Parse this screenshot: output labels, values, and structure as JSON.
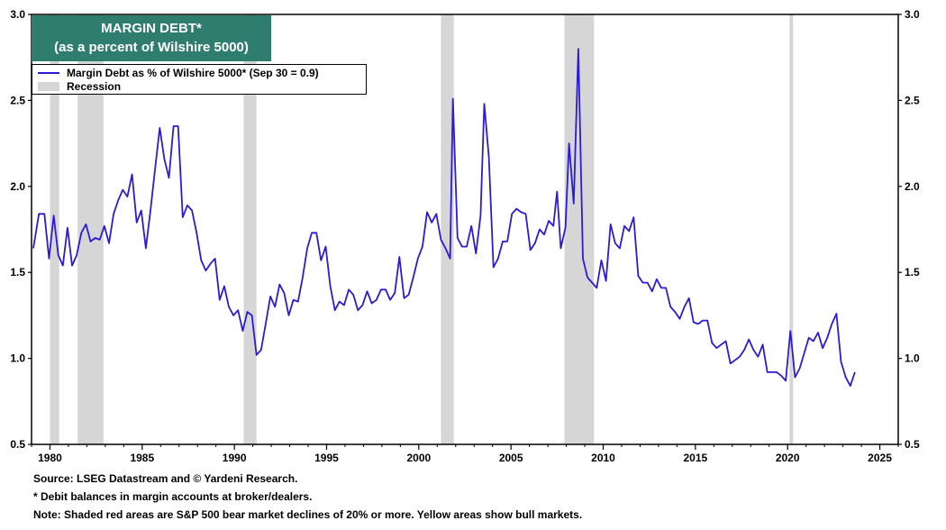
{
  "title_lines": [
    "MARGIN DEBT*",
    "(as a percent of Wilshire 5000)"
  ],
  "legend": {
    "series_label": "Margin Debt as % of Wilshire 5000*  (Sep 30 = 0.9)",
    "recession_label": "Recession"
  },
  "footnotes": [
    "Source: LSEG Datastream and © Yardeni Research.",
    "* Debit balances in margin accounts at broker/dealers.",
    "Note: Shaded red areas are S&P 500 bear market declines of 20% or more. Yellow areas show bull markets."
  ],
  "colors": {
    "line": "#2b1bd9",
    "recession": "#d6d6d6",
    "title_bg": "#2e7d6e"
  },
  "chart_data": {
    "type": "line",
    "title": "MARGIN DEBT* (as a percent of Wilshire 5000)",
    "xlim": [
      1979.0,
      2026.0
    ],
    "ylim": [
      0.5,
      3.0
    ],
    "x_ticks": [
      1980,
      1985,
      1990,
      1995,
      2000,
      2005,
      2010,
      2015,
      2020,
      2025
    ],
    "y_ticks": [
      "0.5",
      "1.0",
      "1.5",
      "2.0",
      "2.5",
      "3.0"
    ],
    "y_axis_both_sides": true,
    "grid": false,
    "legend_position": "top-left",
    "recessions": [
      [
        1980.0,
        1980.5
      ],
      [
        1981.5,
        1982.9
      ],
      [
        1990.5,
        1991.2
      ],
      [
        2001.2,
        2001.9
      ],
      [
        2007.9,
        2009.5
      ],
      [
        2020.1,
        2020.3
      ]
    ],
    "series": [
      {
        "name": "Margin Debt as % of Wilshire 5000*  (Sep 30 = 0.9)",
        "points": [
          [
            1979.1,
            1.64
          ],
          [
            1979.4,
            1.84
          ],
          [
            1979.7,
            1.84
          ],
          [
            1979.95,
            1.58
          ],
          [
            1980.2,
            1.83
          ],
          [
            1980.45,
            1.6
          ],
          [
            1980.7,
            1.54
          ],
          [
            1980.95,
            1.76
          ],
          [
            1981.2,
            1.54
          ],
          [
            1981.45,
            1.6
          ],
          [
            1981.7,
            1.73
          ],
          [
            1981.95,
            1.78
          ],
          [
            1982.2,
            1.68
          ],
          [
            1982.45,
            1.7
          ],
          [
            1982.7,
            1.69
          ],
          [
            1982.95,
            1.77
          ],
          [
            1983.2,
            1.67
          ],
          [
            1983.45,
            1.84
          ],
          [
            1983.7,
            1.92
          ],
          [
            1983.95,
            1.98
          ],
          [
            1984.2,
            1.94
          ],
          [
            1984.45,
            2.07
          ],
          [
            1984.7,
            1.79
          ],
          [
            1984.95,
            1.86
          ],
          [
            1985.2,
            1.64
          ],
          [
            1985.45,
            1.86
          ],
          [
            1985.7,
            2.1
          ],
          [
            1985.95,
            2.34
          ],
          [
            1986.2,
            2.16
          ],
          [
            1986.45,
            2.05
          ],
          [
            1986.7,
            2.35
          ],
          [
            1986.95,
            2.35
          ],
          [
            1987.2,
            1.82
          ],
          [
            1987.45,
            1.89
          ],
          [
            1987.7,
            1.86
          ],
          [
            1987.95,
            1.73
          ],
          [
            1988.2,
            1.57
          ],
          [
            1988.45,
            1.51
          ],
          [
            1988.7,
            1.55
          ],
          [
            1988.95,
            1.58
          ],
          [
            1989.2,
            1.34
          ],
          [
            1989.45,
            1.42
          ],
          [
            1989.7,
            1.3
          ],
          [
            1989.95,
            1.25
          ],
          [
            1990.2,
            1.28
          ],
          [
            1990.45,
            1.16
          ],
          [
            1990.7,
            1.27
          ],
          [
            1990.95,
            1.25
          ],
          [
            1991.2,
            1.02
          ],
          [
            1991.45,
            1.05
          ],
          [
            1991.7,
            1.2
          ],
          [
            1991.95,
            1.36
          ],
          [
            1992.2,
            1.3
          ],
          [
            1992.45,
            1.43
          ],
          [
            1992.7,
            1.38
          ],
          [
            1992.95,
            1.25
          ],
          [
            1993.2,
            1.34
          ],
          [
            1993.45,
            1.33
          ],
          [
            1993.7,
            1.47
          ],
          [
            1993.95,
            1.64
          ],
          [
            1994.2,
            1.73
          ],
          [
            1994.45,
            1.73
          ],
          [
            1994.7,
            1.57
          ],
          [
            1994.95,
            1.65
          ],
          [
            1995.2,
            1.42
          ],
          [
            1995.45,
            1.28
          ],
          [
            1995.7,
            1.33
          ],
          [
            1995.95,
            1.31
          ],
          [
            1996.2,
            1.4
          ],
          [
            1996.45,
            1.37
          ],
          [
            1996.7,
            1.28
          ],
          [
            1996.95,
            1.31
          ],
          [
            1997.2,
            1.39
          ],
          [
            1997.45,
            1.32
          ],
          [
            1997.7,
            1.34
          ],
          [
            1997.95,
            1.4
          ],
          [
            1998.2,
            1.4
          ],
          [
            1998.45,
            1.34
          ],
          [
            1998.7,
            1.38
          ],
          [
            1998.95,
            1.59
          ],
          [
            1999.2,
            1.35
          ],
          [
            1999.45,
            1.37
          ],
          [
            1999.7,
            1.47
          ],
          [
            1999.95,
            1.58
          ],
          [
            2000.2,
            1.65
          ],
          [
            2000.45,
            1.85
          ],
          [
            2000.7,
            1.79
          ],
          [
            2000.95,
            1.84
          ],
          [
            2001.2,
            1.69
          ],
          [
            2001.45,
            1.64
          ],
          [
            2001.7,
            1.58
          ],
          [
            2001.85,
            2.51
          ],
          [
            2002.1,
            1.7
          ],
          [
            2002.35,
            1.65
          ],
          [
            2002.6,
            1.65
          ],
          [
            2002.85,
            1.77
          ],
          [
            2003.1,
            1.61
          ],
          [
            2003.35,
            1.83
          ],
          [
            2003.55,
            2.48
          ],
          [
            2003.8,
            2.17
          ],
          [
            2004.05,
            1.53
          ],
          [
            2004.3,
            1.58
          ],
          [
            2004.55,
            1.68
          ],
          [
            2004.8,
            1.68
          ],
          [
            2005.05,
            1.84
          ],
          [
            2005.3,
            1.87
          ],
          [
            2005.55,
            1.85
          ],
          [
            2005.8,
            1.84
          ],
          [
            2006.05,
            1.63
          ],
          [
            2006.3,
            1.67
          ],
          [
            2006.55,
            1.75
          ],
          [
            2006.8,
            1.72
          ],
          [
            2007.05,
            1.8
          ],
          [
            2007.3,
            1.77
          ],
          [
            2007.5,
            1.97
          ],
          [
            2007.7,
            1.64
          ],
          [
            2007.95,
            1.76
          ],
          [
            2008.15,
            2.25
          ],
          [
            2008.4,
            1.9
          ],
          [
            2008.65,
            2.8
          ],
          [
            2008.9,
            1.58
          ],
          [
            2009.15,
            1.47
          ],
          [
            2009.4,
            1.44
          ],
          [
            2009.65,
            1.41
          ],
          [
            2009.9,
            1.57
          ],
          [
            2010.15,
            1.45
          ],
          [
            2010.4,
            1.78
          ],
          [
            2010.65,
            1.67
          ],
          [
            2010.9,
            1.64
          ],
          [
            2011.15,
            1.77
          ],
          [
            2011.4,
            1.74
          ],
          [
            2011.65,
            1.82
          ],
          [
            2011.9,
            1.48
          ],
          [
            2012.15,
            1.44
          ],
          [
            2012.4,
            1.44
          ],
          [
            2012.65,
            1.39
          ],
          [
            2012.9,
            1.46
          ],
          [
            2013.15,
            1.41
          ],
          [
            2013.4,
            1.41
          ],
          [
            2013.65,
            1.3
          ],
          [
            2013.9,
            1.27
          ],
          [
            2014.15,
            1.23
          ],
          [
            2014.4,
            1.3
          ],
          [
            2014.65,
            1.35
          ],
          [
            2014.9,
            1.21
          ],
          [
            2015.15,
            1.2
          ],
          [
            2015.4,
            1.22
          ],
          [
            2015.65,
            1.22
          ],
          [
            2015.9,
            1.09
          ],
          [
            2016.15,
            1.06
          ],
          [
            2016.4,
            1.08
          ],
          [
            2016.65,
            1.1
          ],
          [
            2016.9,
            0.97
          ],
          [
            2017.15,
            0.99
          ],
          [
            2017.4,
            1.01
          ],
          [
            2017.65,
            1.05
          ],
          [
            2017.9,
            1.11
          ],
          [
            2018.15,
            1.05
          ],
          [
            2018.4,
            1.01
          ],
          [
            2018.65,
            1.08
          ],
          [
            2018.9,
            0.92
          ],
          [
            2019.15,
            0.92
          ],
          [
            2019.4,
            0.92
          ],
          [
            2019.65,
            0.9
          ],
          [
            2019.9,
            0.87
          ],
          [
            2020.15,
            1.16
          ],
          [
            2020.4,
            0.89
          ],
          [
            2020.65,
            0.94
          ],
          [
            2020.9,
            1.03
          ],
          [
            2021.15,
            1.12
          ],
          [
            2021.4,
            1.1
          ],
          [
            2021.65,
            1.15
          ],
          [
            2021.9,
            1.06
          ],
          [
            2022.15,
            1.12
          ],
          [
            2022.4,
            1.2
          ],
          [
            2022.65,
            1.26
          ],
          [
            2022.9,
            0.98
          ],
          [
            2023.15,
            0.89
          ],
          [
            2023.4,
            0.84
          ],
          [
            2023.65,
            0.92
          ]
        ]
      }
    ]
  }
}
